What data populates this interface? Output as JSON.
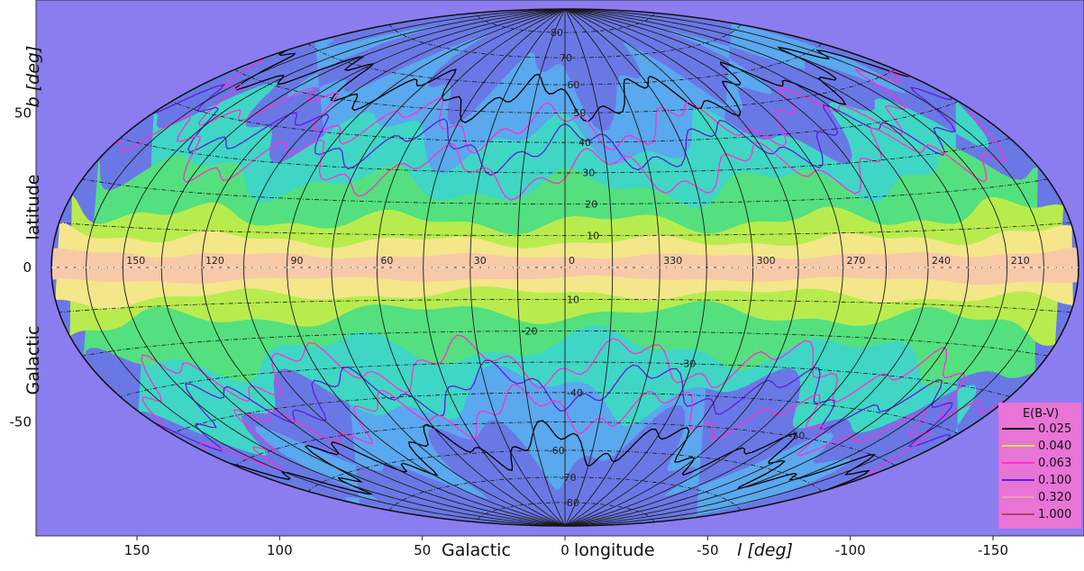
{
  "map": {
    "projection": "hammer-aitoff",
    "background_color": "#8b7cf0",
    "colors": {
      "band_core": "#f8c9a8",
      "band_inner": "#f3e78a",
      "band_mid": "#b8ec4e",
      "band_outer": "#54e07e",
      "mid_latitude": "#3fd6c6",
      "high_latitude": "#5aa8ee",
      "polar": "#6a78e6",
      "graticule": "#1a1a1a"
    },
    "axes": {
      "x_title": "Galactic",
      "x_title_2": "longitude",
      "x_unit": "l [deg]",
      "x_ticks": [
        "150",
        "100",
        "50",
        "0",
        "-50",
        "-100",
        "-150"
      ],
      "y_title": "Galactic",
      "y_title_2": "latitude",
      "y_unit": "b [deg]",
      "y_ticks": [
        "50",
        "0",
        "-50"
      ]
    },
    "longitude_labels": [
      "150",
      "120",
      "90",
      "60",
      "30",
      "0",
      "330",
      "300",
      "270",
      "240",
      "210"
    ],
    "latitude_labels_north": [
      "80",
      "70",
      "60",
      "50",
      "40",
      "30",
      "20",
      "10"
    ],
    "latitude_labels_south": [
      "10",
      "-20",
      "-30",
      "-40",
      "-50",
      "-60",
      "-70",
      "-80"
    ]
  },
  "legend": {
    "title": "E(B-V)",
    "background": "#e874d6",
    "entries": [
      {
        "label": "0.025",
        "color": "#000000"
      },
      {
        "label": "0.040",
        "color": "#c8e84a"
      },
      {
        "label": "0.063",
        "color": "#ff2fd0"
      },
      {
        "label": "0.100",
        "color": "#5a1fd8"
      },
      {
        "label": "0.320",
        "color": "#e8a0b8"
      },
      {
        "label": "1.000",
        "color": "#b04060"
      }
    ]
  }
}
